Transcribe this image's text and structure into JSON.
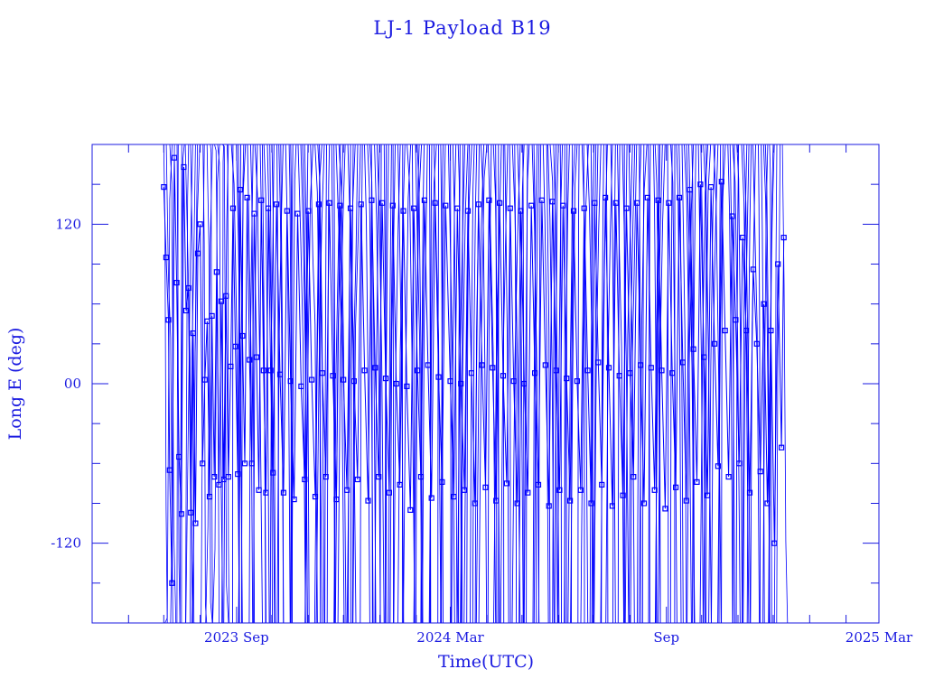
{
  "chart_data": {
    "type": "line",
    "title": "LJ-1 Payload B19",
    "xlabel": "Time(UTC)",
    "ylabel": "Long E (deg)",
    "x_ticks": [
      {
        "date": "2023-09-01",
        "label": "2023 Sep"
      },
      {
        "date": "2024-03-01",
        "label": "2024 Mar"
      },
      {
        "date": "2024-09-01",
        "label": "Sep"
      },
      {
        "date": "2025-03-01",
        "label": "2025 Mar"
      }
    ],
    "y_ticks": [
      {
        "value": 120,
        "label": "120"
      },
      {
        "value": 0,
        "label": "00"
      },
      {
        "value": -120,
        "label": "-120"
      }
    ],
    "xlim": [
      "2023-05-01",
      "2025-03-01"
    ],
    "ylim": [
      -180,
      180
    ],
    "data_range": [
      "2023-07-01",
      "2024-12-10"
    ],
    "line_color": "#0000ff",
    "marker": "square",
    "grid": false,
    "series": [
      {
        "values_description_only": "",
        "points": [
          [
            "2023-07-01",
            148
          ],
          [
            "2023-07-03",
            95
          ],
          [
            "2023-07-05",
            48
          ],
          [
            "2023-07-06",
            -65
          ],
          [
            "2023-07-08",
            -150
          ],
          [
            "2023-07-10",
            170
          ],
          [
            "2023-07-12",
            76
          ],
          [
            "2023-07-14",
            -55
          ],
          [
            "2023-07-16",
            -98
          ],
          [
            "2023-07-18",
            163
          ],
          [
            "2023-07-20",
            55
          ],
          [
            "2023-07-22",
            72
          ],
          [
            "2023-07-24",
            -97
          ],
          [
            "2023-07-26",
            38
          ],
          [
            "2023-07-28",
            -105
          ],
          [
            "2023-07-30",
            98
          ],
          [
            "2023-08-01",
            120
          ],
          [
            "2023-08-03",
            -60
          ],
          [
            "2023-08-05",
            3
          ],
          [
            "2023-08-07",
            47
          ],
          [
            "2023-08-09",
            -85
          ],
          [
            "2023-08-11",
            51
          ],
          [
            "2023-08-13",
            -70
          ],
          [
            "2023-08-15",
            84
          ],
          [
            "2023-08-17",
            -76
          ],
          [
            "2023-08-19",
            62
          ],
          [
            "2023-08-21",
            -72
          ],
          [
            "2023-08-23",
            66
          ],
          [
            "2023-08-25",
            -70
          ],
          [
            "2023-08-27",
            13
          ],
          [
            "2023-08-29",
            132
          ],
          [
            "2023-08-31",
            28
          ],
          [
            "2023-09-02",
            -68
          ],
          [
            "2023-09-04",
            146
          ],
          [
            "2023-09-06",
            36
          ],
          [
            "2023-09-08",
            -60
          ],
          [
            "2023-09-10",
            140
          ],
          [
            "2023-09-12",
            18
          ],
          [
            "2023-09-14",
            -60
          ],
          [
            "2023-09-16",
            128
          ],
          [
            "2023-09-18",
            20
          ],
          [
            "2023-09-20",
            -80
          ],
          [
            "2023-09-22",
            138
          ],
          [
            "2023-09-24",
            10
          ],
          [
            "2023-09-26",
            -82
          ],
          [
            "2023-09-28",
            132
          ],
          [
            "2023-09-30",
            10
          ],
          [
            "2023-10-02",
            -67
          ],
          [
            "2023-10-05",
            135
          ],
          [
            "2023-10-08",
            7
          ],
          [
            "2023-10-11",
            -82
          ],
          [
            "2023-10-14",
            130
          ],
          [
            "2023-10-17",
            2
          ],
          [
            "2023-10-20",
            -87
          ],
          [
            "2023-10-23",
            128
          ],
          [
            "2023-10-26",
            -2
          ],
          [
            "2023-10-29",
            -72
          ],
          [
            "2023-11-01",
            130
          ],
          [
            "2023-11-04",
            3
          ],
          [
            "2023-11-07",
            -85
          ],
          [
            "2023-11-10",
            135
          ],
          [
            "2023-11-13",
            8
          ],
          [
            "2023-11-16",
            -70
          ],
          [
            "2023-11-19",
            136
          ],
          [
            "2023-11-22",
            6
          ],
          [
            "2023-11-25",
            -87
          ],
          [
            "2023-11-28",
            134
          ],
          [
            "2023-12-01",
            3
          ],
          [
            "2023-12-04",
            -80
          ],
          [
            "2023-12-07",
            132
          ],
          [
            "2023-12-10",
            2
          ],
          [
            "2023-12-13",
            -72
          ],
          [
            "2023-12-16",
            135
          ],
          [
            "2023-12-19",
            10
          ],
          [
            "2023-12-22",
            -88
          ],
          [
            "2023-12-25",
            138
          ],
          [
            "2023-12-28",
            12
          ],
          [
            "2023-12-31",
            -70
          ],
          [
            "2024-01-03",
            136
          ],
          [
            "2024-01-06",
            4
          ],
          [
            "2024-01-09",
            -82
          ],
          [
            "2024-01-12",
            134
          ],
          [
            "2024-01-15",
            0
          ],
          [
            "2024-01-18",
            -76
          ],
          [
            "2024-01-21",
            130
          ],
          [
            "2024-01-24",
            -2
          ],
          [
            "2024-01-27",
            -95
          ],
          [
            "2024-01-30",
            132
          ],
          [
            "2024-02-02",
            10
          ],
          [
            "2024-02-05",
            -70
          ],
          [
            "2024-02-08",
            138
          ],
          [
            "2024-02-11",
            14
          ],
          [
            "2024-02-14",
            -86
          ],
          [
            "2024-02-17",
            136
          ],
          [
            "2024-02-20",
            5
          ],
          [
            "2024-02-23",
            -74
          ],
          [
            "2024-02-26",
            134
          ],
          [
            "2024-03-01",
            2
          ],
          [
            "2024-03-04",
            -85
          ],
          [
            "2024-03-07",
            132
          ],
          [
            "2024-03-10",
            0
          ],
          [
            "2024-03-13",
            -80
          ],
          [
            "2024-03-16",
            130
          ],
          [
            "2024-03-19",
            8
          ],
          [
            "2024-03-22",
            -90
          ],
          [
            "2024-03-25",
            135
          ],
          [
            "2024-03-28",
            14
          ],
          [
            "2024-03-31",
            -78
          ],
          [
            "2024-04-03",
            138
          ],
          [
            "2024-04-06",
            12
          ],
          [
            "2024-04-09",
            -88
          ],
          [
            "2024-04-12",
            136
          ],
          [
            "2024-04-15",
            6
          ],
          [
            "2024-04-18",
            -75
          ],
          [
            "2024-04-21",
            132
          ],
          [
            "2024-04-24",
            2
          ],
          [
            "2024-04-27",
            -90
          ],
          [
            "2024-04-30",
            130
          ],
          [
            "2024-05-03",
            0
          ],
          [
            "2024-05-06",
            -82
          ],
          [
            "2024-05-09",
            134
          ],
          [
            "2024-05-12",
            8
          ],
          [
            "2024-05-15",
            -76
          ],
          [
            "2024-05-18",
            138
          ],
          [
            "2024-05-21",
            14
          ],
          [
            "2024-05-24",
            -92
          ],
          [
            "2024-05-27",
            137
          ],
          [
            "2024-05-30",
            10
          ],
          [
            "2024-06-02",
            -80
          ],
          [
            "2024-06-05",
            134
          ],
          [
            "2024-06-08",
            4
          ],
          [
            "2024-06-11",
            -88
          ],
          [
            "2024-06-14",
            130
          ],
          [
            "2024-06-17",
            2
          ],
          [
            "2024-06-20",
            -80
          ],
          [
            "2024-06-23",
            132
          ],
          [
            "2024-06-26",
            10
          ],
          [
            "2024-06-29",
            -90
          ],
          [
            "2024-07-02",
            136
          ],
          [
            "2024-07-05",
            16
          ],
          [
            "2024-07-08",
            -76
          ],
          [
            "2024-07-11",
            140
          ],
          [
            "2024-07-14",
            12
          ],
          [
            "2024-07-17",
            -92
          ],
          [
            "2024-07-20",
            136
          ],
          [
            "2024-07-23",
            6
          ],
          [
            "2024-07-26",
            -84
          ],
          [
            "2024-07-29",
            132
          ],
          [
            "2024-08-01",
            8
          ],
          [
            "2024-08-04",
            -70
          ],
          [
            "2024-08-07",
            136
          ],
          [
            "2024-08-10",
            14
          ],
          [
            "2024-08-13",
            -90
          ],
          [
            "2024-08-16",
            140
          ],
          [
            "2024-08-19",
            12
          ],
          [
            "2024-08-22",
            -80
          ],
          [
            "2024-08-25",
            138
          ],
          [
            "2024-08-28",
            10
          ],
          [
            "2024-08-31",
            -94
          ],
          [
            "2024-09-03",
            136
          ],
          [
            "2024-09-06",
            8
          ],
          [
            "2024-09-09",
            -78
          ],
          [
            "2024-09-12",
            140
          ],
          [
            "2024-09-15",
            16
          ],
          [
            "2024-09-18",
            -88
          ],
          [
            "2024-09-21",
            146
          ],
          [
            "2024-09-24",
            26
          ],
          [
            "2024-09-27",
            -74
          ],
          [
            "2024-09-30",
            150
          ],
          [
            "2024-10-03",
            20
          ],
          [
            "2024-10-06",
            -84
          ],
          [
            "2024-10-09",
            148
          ],
          [
            "2024-10-12",
            30
          ],
          [
            "2024-10-15",
            -62
          ],
          [
            "2024-10-18",
            152
          ],
          [
            "2024-10-21",
            40
          ],
          [
            "2024-10-24",
            -70
          ],
          [
            "2024-10-27",
            126
          ],
          [
            "2024-10-30",
            48
          ],
          [
            "2024-11-02",
            -60
          ],
          [
            "2024-11-05",
            110
          ],
          [
            "2024-11-08",
            40
          ],
          [
            "2024-11-11",
            -82
          ],
          [
            "2024-11-14",
            86
          ],
          [
            "2024-11-17",
            30
          ],
          [
            "2024-11-20",
            -66
          ],
          [
            "2024-11-23",
            60
          ],
          [
            "2024-11-26",
            -90
          ],
          [
            "2024-11-29",
            40
          ],
          [
            "2024-12-02",
            -120
          ],
          [
            "2024-12-05",
            90
          ],
          [
            "2024-12-08",
            -48
          ],
          [
            "2024-12-10",
            110
          ]
        ]
      }
    ]
  }
}
